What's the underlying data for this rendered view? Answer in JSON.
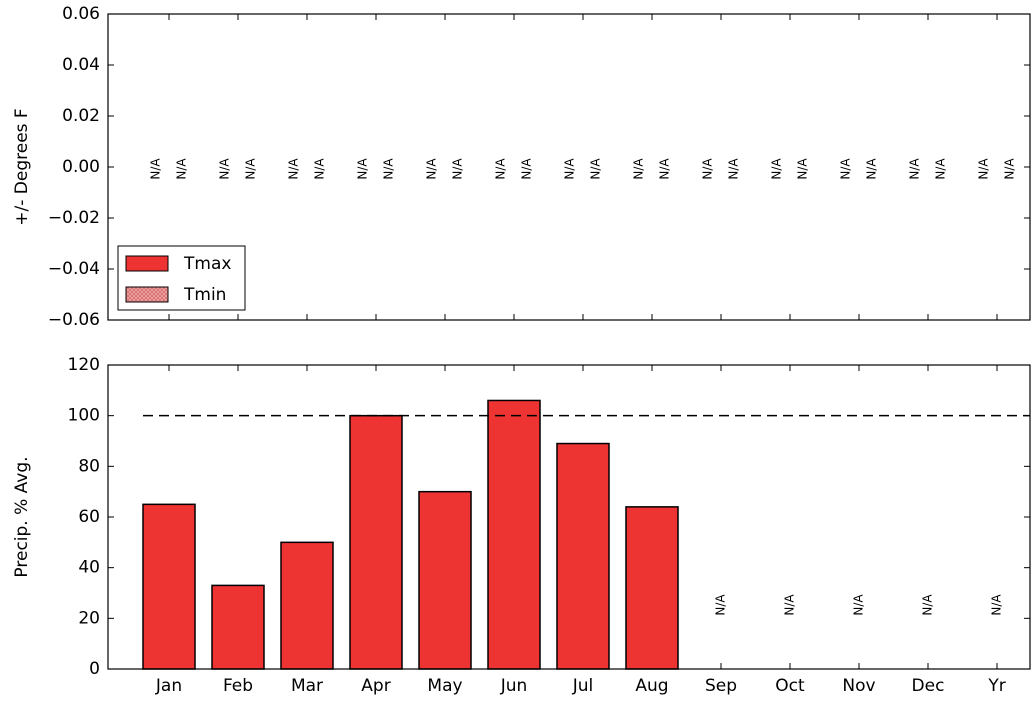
{
  "chart_data": [
    {
      "type": "bar",
      "y_label": "+/- Degrees F",
      "ylim": [
        -0.06,
        0.06
      ],
      "yticks": [
        {
          "value": -0.06,
          "label": "−0.06"
        },
        {
          "value": -0.04,
          "label": "−0.04"
        },
        {
          "value": -0.02,
          "label": "−0.02"
        },
        {
          "value": 0,
          "label": "0.00"
        },
        0.02,
        0.04,
        0.06
      ],
      "legend": "lower left",
      "series": [
        {
          "name": "Tmax",
          "color": "#ee3333",
          "hatch": false,
          "values": [
            null,
            null,
            null,
            null,
            null,
            null,
            null,
            null,
            null,
            null,
            null,
            null,
            null
          ],
          "value_labels": [
            "N/A",
            "N/A",
            "N/A",
            "N/A",
            "N/A",
            "N/A",
            "N/A",
            "N/A",
            "N/A",
            "N/A",
            "N/A",
            "N/A",
            "N/A"
          ]
        },
        {
          "name": "Tmin",
          "color": "#f2a0a0",
          "hatch": true,
          "values": [
            null,
            null,
            null,
            null,
            null,
            null,
            null,
            null,
            null,
            null,
            null,
            null,
            null
          ],
          "value_labels": [
            "N/A",
            "N/A",
            "N/A",
            "N/A",
            "N/A",
            "N/A",
            "N/A",
            "N/A",
            "N/A",
            "N/A",
            "N/A",
            "N/A",
            "N/A"
          ]
        }
      ]
    },
    {
      "type": "bar",
      "y_label": "Precip. % Avg.",
      "categories": [
        "Jan",
        "Feb",
        "Mar",
        "Apr",
        "May",
        "Jun",
        "Jul",
        "Aug",
        "Sep",
        "Oct",
        "Nov",
        "Dec",
        "Yr"
      ],
      "values": [
        65,
        33,
        50,
        100,
        70,
        106,
        89,
        64,
        null,
        null,
        null,
        null,
        null
      ],
      "value_labels": [
        null,
        null,
        null,
        null,
        null,
        null,
        null,
        null,
        "N/A",
        "N/A",
        "N/A",
        "N/A",
        "N/A"
      ],
      "color": "#ee3333",
      "ylim": [
        0,
        120
      ],
      "yticks": [
        0,
        20,
        40,
        60,
        80,
        100,
        120
      ],
      "reference_line": 100
    }
  ]
}
